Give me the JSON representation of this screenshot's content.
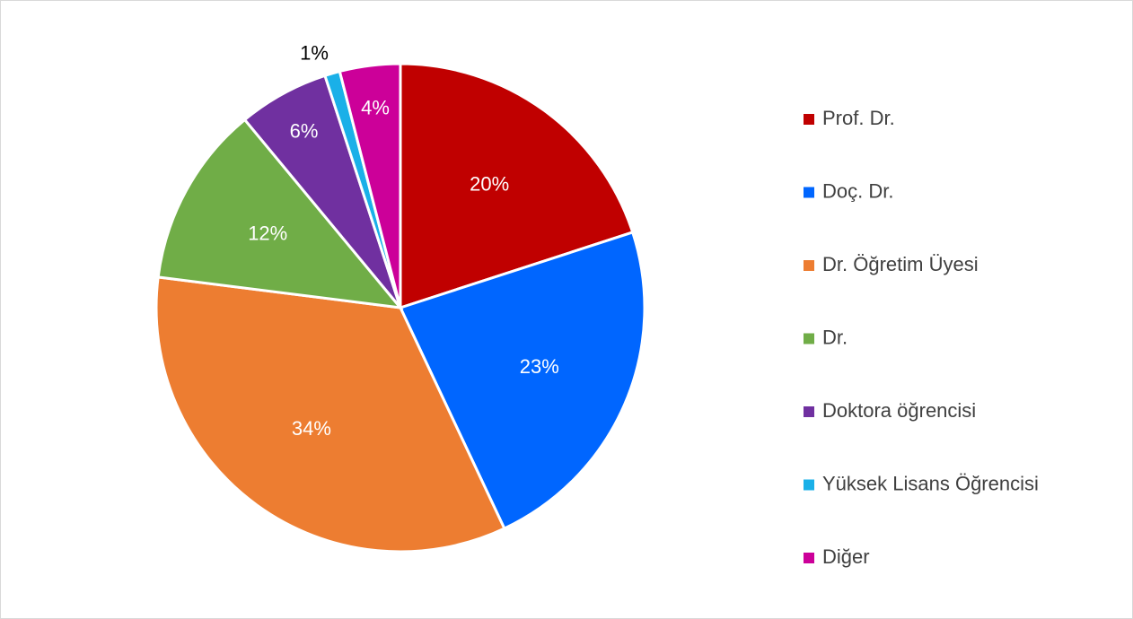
{
  "chart_data": {
    "type": "pie",
    "categories": [
      "Prof. Dr.",
      "Doç. Dr.",
      "Dr. Öğretim Üyesi",
      "Dr.",
      "Doktora öğrencisi",
      "Yüksek Lisans Öğrencisi",
      "Diğer"
    ],
    "values": [
      20,
      23,
      34,
      12,
      6,
      1,
      4
    ],
    "value_labels": [
      "20%",
      "23%",
      "34%",
      "12%",
      "6%",
      "1%",
      "4%"
    ],
    "colors": [
      "#c00000",
      "#0066ff",
      "#ed7d31",
      "#70ad47",
      "#7030a0",
      "#1ab0e8",
      "#cc0099"
    ],
    "legend": "right"
  }
}
